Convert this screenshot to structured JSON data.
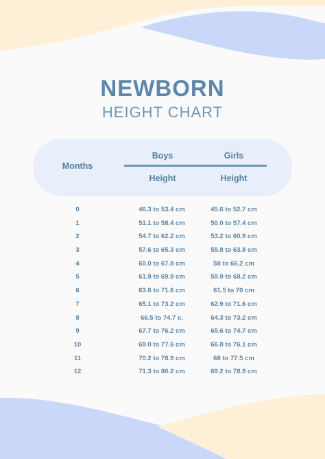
{
  "title": "NEWBORN",
  "subtitle": "HEIGHT CHART",
  "colors": {
    "accent": "#5b87ad",
    "header_bg": "#e8effb",
    "wave_blue": "#c9d8f8",
    "wave_yellow": "#fdf0d6"
  },
  "header": {
    "months": "Months",
    "boys": "Boys",
    "girls": "Girls",
    "boys_sub": "Height",
    "girls_sub": "Height"
  },
  "rows": [
    {
      "month": "0",
      "boys": "46.3 to 53.4 cm",
      "girls": "45.6 to 52.7 cm"
    },
    {
      "month": "1",
      "boys": "51.1 to 58.4 cm",
      "girls": "50.0 to 57.4 cm"
    },
    {
      "month": "2",
      "boys": "54.7 to 62.2 cm",
      "girls": "53.2 to 60.9 cm"
    },
    {
      "month": "3",
      "boys": "57.6 to 65.3 cm",
      "girls": "55.8 to 63.8 cm"
    },
    {
      "month": "4",
      "boys": "60.0 to 67.8 cm",
      "girls": "58 to 66.2 cm"
    },
    {
      "month": "5",
      "boys": "61.9 to 69.9 cm",
      "girls": "59.9 to 68.2 cm"
    },
    {
      "month": "6",
      "boys": "63.6 to 71.6 cm",
      "girls": "61.5 to 70 cm"
    },
    {
      "month": "7",
      "boys": "65.1 to 73.2 cm",
      "girls": "62.9 to 71.6 cm"
    },
    {
      "month": "8",
      "boys": "66.5 to 74.7 c,",
      "girls": "64.3 to 73.2 cm"
    },
    {
      "month": "9",
      "boys": "67.7 to 76.2 cm",
      "girls": "65.6 to 74.7 cm"
    },
    {
      "month": "10",
      "boys": "69.0 to 77.6 cm",
      "girls": "66.8 to 76.1 cm"
    },
    {
      "month": "11",
      "boys": "70.2 to 78.9 cm",
      "girls": "68 to 77.5 cm"
    },
    {
      "month": "12",
      "boys": "71.3 to 80.2 cm",
      "girls": "69.2 to 78.9 cm"
    }
  ]
}
